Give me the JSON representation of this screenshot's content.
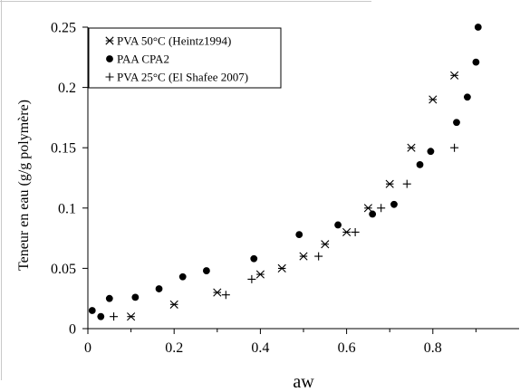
{
  "chart_data": {
    "type": "scatter",
    "xlabel": "aw",
    "ylabel": "Teneur en eau (g/g polymère)",
    "xlim": [
      0,
      1
    ],
    "ylim": [
      0,
      0.25
    ],
    "x_ticks": [
      "0",
      "0.2",
      "0.4",
      "0.6",
      "0.8"
    ],
    "x_tick_values": [
      0,
      0.2,
      0.4,
      0.6,
      0.8
    ],
    "y_ticks": [
      "0",
      "0.05",
      "0.1",
      "0.15",
      "0.2",
      "0.25"
    ],
    "y_tick_values": [
      0,
      0.05,
      0.1,
      0.15,
      0.2,
      0.25
    ],
    "grid": false,
    "legend_position": "top-left",
    "series": [
      {
        "name": "PVA 50°C (Heintz1994)",
        "marker": "asterisk",
        "color": "#000000",
        "points": [
          [
            0.1,
            0.01
          ],
          [
            0.2,
            0.02
          ],
          [
            0.3,
            0.03
          ],
          [
            0.4,
            0.045
          ],
          [
            0.45,
            0.05
          ],
          [
            0.5,
            0.06
          ],
          [
            0.55,
            0.07
          ],
          [
            0.6,
            0.08
          ],
          [
            0.65,
            0.1
          ],
          [
            0.7,
            0.12
          ],
          [
            0.75,
            0.15
          ],
          [
            0.8,
            0.19
          ],
          [
            0.85,
            0.21
          ]
        ]
      },
      {
        "name": "PAA CPA2",
        "marker": "circle",
        "color": "#000000",
        "points": [
          [
            0.01,
            0.015
          ],
          [
            0.03,
            0.01
          ],
          [
            0.05,
            0.025
          ],
          [
            0.11,
            0.026
          ],
          [
            0.165,
            0.033
          ],
          [
            0.22,
            0.043
          ],
          [
            0.275,
            0.048
          ],
          [
            0.385,
            0.058
          ],
          [
            0.49,
            0.078
          ],
          [
            0.58,
            0.086
          ],
          [
            0.66,
            0.095
          ],
          [
            0.71,
            0.103
          ],
          [
            0.77,
            0.136
          ],
          [
            0.795,
            0.147
          ],
          [
            0.855,
            0.171
          ],
          [
            0.88,
            0.192
          ],
          [
            0.9,
            0.221
          ],
          [
            0.905,
            0.25
          ]
        ]
      },
      {
        "name": "PVA 25°C (El Shafee 2007)",
        "marker": "plus",
        "color": "#000000",
        "points": [
          [
            0.06,
            0.01
          ],
          [
            0.32,
            0.028
          ],
          [
            0.38,
            0.041
          ],
          [
            0.535,
            0.06
          ],
          [
            0.62,
            0.08
          ],
          [
            0.68,
            0.1
          ],
          [
            0.74,
            0.12
          ],
          [
            0.85,
            0.15
          ]
        ]
      }
    ]
  }
}
